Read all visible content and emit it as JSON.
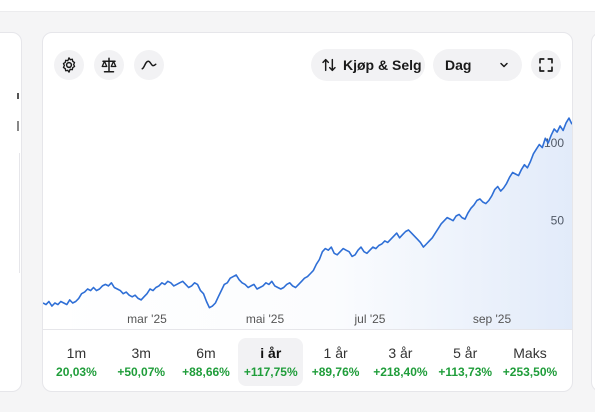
{
  "toolbar": {
    "settings_icon": "gear-icon",
    "compare_icon": "scale-icon",
    "indicator_icon": "wave-icon",
    "trade_label": "Kjøp & Selg",
    "trade_icon": "up-down-arrows-icon",
    "period_value": "Dag",
    "expand_icon": "expand-icon"
  },
  "chart_data": {
    "type": "area",
    "x_ticks": [
      "mar '25",
      "mai '25",
      "jul '25",
      "sep '25"
    ],
    "y_ticks": [
      50,
      100
    ],
    "ylim": [
      -12,
      118
    ],
    "line_color": "#2f6fd6",
    "series": [
      {
        "values": [
          -3,
          -4,
          -2,
          -5,
          -3,
          -4,
          -2,
          -3,
          -4,
          -1,
          -3,
          -2,
          0,
          3,
          4,
          6,
          5,
          7,
          5,
          6,
          8,
          9,
          8,
          10,
          7,
          6,
          5,
          3,
          4,
          2,
          1,
          2,
          0,
          -1,
          1,
          3,
          6,
          5,
          7,
          8,
          10,
          9,
          11,
          10,
          8,
          9,
          10,
          11,
          9,
          7,
          8,
          10,
          9,
          5,
          3,
          -2,
          -6,
          -5,
          -3,
          1,
          5,
          9,
          10,
          13,
          14,
          15,
          12,
          10,
          9,
          7,
          8,
          9,
          6,
          7,
          8,
          10,
          9,
          11,
          8,
          7,
          6,
          7,
          9,
          10,
          8,
          7,
          9,
          11,
          13,
          14,
          16,
          18,
          22,
          25,
          30,
          32,
          31,
          33,
          29,
          28,
          30,
          32,
          31,
          30,
          27,
          28,
          31,
          33,
          30,
          29,
          31,
          33,
          32,
          34,
          35,
          37,
          36,
          38,
          40,
          42,
          39,
          41,
          43,
          44,
          42,
          40,
          38,
          36,
          33,
          35,
          37,
          39,
          42,
          45,
          48,
          50,
          52,
          51,
          50,
          53,
          54,
          52,
          51,
          55,
          58,
          60,
          63,
          64,
          62,
          61,
          63,
          66,
          70,
          72,
          69,
          71,
          74,
          78,
          81,
          80,
          79,
          83,
          86,
          84,
          88,
          93,
          96,
          99,
          97,
          103,
          100,
          105,
          109,
          107,
          111,
          108,
          113,
          116,
          112
        ]
      }
    ]
  },
  "ranges": [
    {
      "label": "1m",
      "change": "20,03%"
    },
    {
      "label": "3m",
      "change": "+50,07%"
    },
    {
      "label": "6m",
      "change": "+88,66%"
    },
    {
      "label": "i år",
      "change": "+117,75%",
      "active": true
    },
    {
      "label": "1 år",
      "change": "+89,76%"
    },
    {
      "label": "3 år",
      "change": "+218,40%"
    },
    {
      "label": "5 år",
      "change": "+113,73%"
    },
    {
      "label": "Maks",
      "change": "+253,50%"
    }
  ],
  "colors": {
    "positive": "#1f9d3a",
    "accent": "#2f6fd6"
  }
}
